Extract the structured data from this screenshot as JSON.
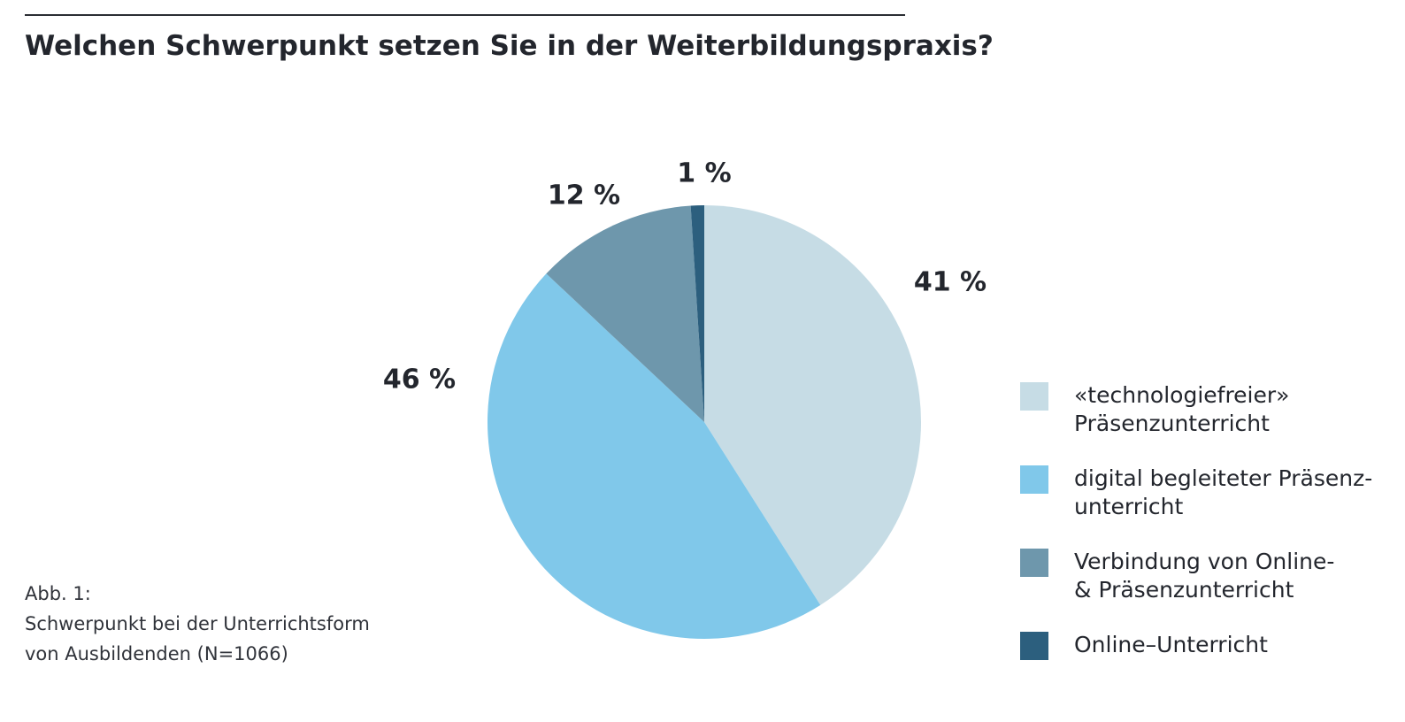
{
  "title": "Welchen Schwerpunkt setzen Sie in der Weiterbildungspraxis?",
  "caption": {
    "line1": "Abb. 1:",
    "line2": "Schwerpunkt bei der Unterrichtsform",
    "line3": "von Ausbildenden (N=1066)"
  },
  "chart_data": {
    "type": "pie",
    "title": "Welchen Schwerpunkt setzen Sie in der Weiterbildungspraxis?",
    "categories": [
      "«technologiefreier» Präsenzunterricht",
      "digital begleiteter Präsenzunterricht",
      "Verbindung von Online- & Präsenzunterricht",
      "Online–Unterricht"
    ],
    "values": [
      41,
      46,
      12,
      1
    ],
    "labels": [
      "41 %",
      "46 %",
      "12 %",
      "1 %"
    ],
    "colors": [
      "#c6dce5",
      "#80c8ea",
      "#6e97ac",
      "#2c5f7e"
    ],
    "legend_position": "right",
    "legend_lines": [
      [
        "«technologiefreier»",
        "Präsenzunterricht"
      ],
      [
        "digital begleiteter Präsenz-",
        "unterricht"
      ],
      [
        "Verbindung von Online-",
        "& Präsenzunterricht"
      ],
      [
        "Online–Unterricht"
      ]
    ]
  }
}
